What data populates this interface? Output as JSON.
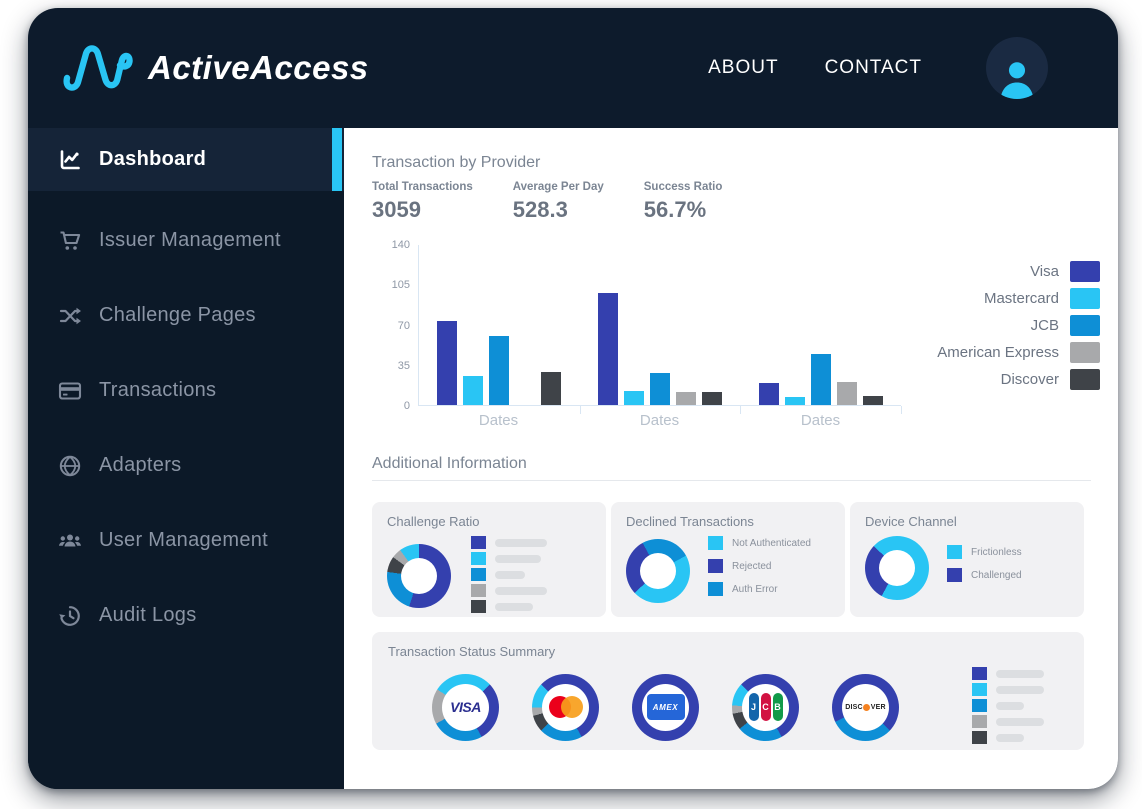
{
  "brand": {
    "name": "ActiveAccess"
  },
  "header": {
    "nav": [
      {
        "id": "about",
        "label": "ABOUT"
      },
      {
        "id": "contact",
        "label": "CONTACT"
      }
    ]
  },
  "sidebar": {
    "accent_color": "#29C5F4",
    "items": [
      {
        "id": "dashboard",
        "label": "Dashboard",
        "icon": "line-chart-icon",
        "active": true
      },
      {
        "id": "issuer-management",
        "label": "Issuer Management",
        "icon": "shopping-cart-icon",
        "active": false
      },
      {
        "id": "challenge-pages",
        "label": "Challenge Pages",
        "icon": "shuffle-icon",
        "active": false
      },
      {
        "id": "transactions",
        "label": "Transactions",
        "icon": "credit-card-icon",
        "active": false
      },
      {
        "id": "adapters",
        "label": "Adapters",
        "icon": "globe-icon",
        "active": false
      },
      {
        "id": "user-management",
        "label": "User Management",
        "icon": "users-icon",
        "active": false
      },
      {
        "id": "audit-logs",
        "label": "Audit Logs",
        "icon": "history-icon",
        "active": false
      }
    ]
  },
  "main": {
    "section_title": "Transaction by Provider",
    "stats": [
      {
        "label": "Total Transactions",
        "value": "3059"
      },
      {
        "label": "Average Per Day",
        "value": "528.3"
      },
      {
        "label": "Success Ratio",
        "value": "56.7%"
      }
    ],
    "additional_title": "Additional Information",
    "cards": {
      "challenge": {
        "title": "Challenge Ratio",
        "skeleton": [
          [
            "indigo",
            52
          ],
          [
            "cyan",
            46
          ],
          [
            "blue",
            30
          ],
          [
            "gray",
            52
          ],
          [
            "dark",
            38
          ]
        ]
      },
      "declined": {
        "title": "Declined Transactions",
        "legend": [
          [
            "cyan",
            "Not Authenticated"
          ],
          [
            "indigo",
            "Rejected"
          ],
          [
            "blue",
            "Auth Error"
          ]
        ]
      },
      "device": {
        "title": "Device Channel",
        "legend": [
          [
            "cyan",
            "Frictionless"
          ],
          [
            "indigo",
            "Challenged"
          ]
        ]
      }
    },
    "summary": {
      "title": "Transaction Status Summary",
      "logos": {
        "visa": "VISA",
        "mastercard": "",
        "amex": "AMEX",
        "jcb": "JCB",
        "discover": "DISCOVER"
      },
      "donuts": [
        {
          "chart": "status-visa",
          "logo": "visa"
        },
        {
          "chart": "status-mastercard",
          "logo": "mastercard"
        },
        {
          "chart": "status-amex",
          "logo": "amex"
        },
        {
          "chart": "status-jcb",
          "logo": "jcb"
        },
        {
          "chart": "status-discover",
          "logo": "discover"
        }
      ],
      "skeleton": [
        [
          "indigo",
          48
        ],
        [
          "cyan",
          48
        ],
        [
          "blue",
          28
        ],
        [
          "gray",
          48
        ],
        [
          "dark",
          28
        ]
      ]
    }
  },
  "palette": {
    "indigo": "#3440AE",
    "cyan": "#29C5F4",
    "blue": "#0E8FD6",
    "gray": "#A8A9AB",
    "dark": "#3F4348",
    "navy": "#0D1B2C",
    "sidebar_navy": "#0C1928",
    "active_navy": "#152438"
  },
  "chart_data": [
    {
      "id": "transactions-by-provider",
      "type": "bar",
      "title": "Transaction by Provider",
      "categories": [
        "Dates",
        "Dates",
        "Dates"
      ],
      "series": [
        {
          "name": "Visa",
          "color": "indigo",
          "values": [
            73,
            97,
            19
          ]
        },
        {
          "name": "Mastercard",
          "color": "cyan",
          "values": [
            25,
            12,
            7
          ]
        },
        {
          "name": "JCB",
          "color": "blue",
          "values": [
            60,
            28,
            44
          ]
        },
        {
          "name": "American Express",
          "color": "gray",
          "values": [
            0,
            11,
            20
          ]
        },
        {
          "name": "Discover",
          "color": "dark",
          "values": [
            29,
            11,
            8
          ]
        }
      ],
      "xlabel": "Dates",
      "ylabel": "",
      "ylim": [
        0,
        140
      ],
      "yticks": [
        140,
        105,
        70,
        35,
        0
      ],
      "legend_position": "right",
      "grid": false
    },
    {
      "id": "challenge-ratio",
      "type": "donut",
      "title": "Challenge Ratio",
      "segments": [
        [
          "indigo",
          55
        ],
        [
          "blue",
          22
        ],
        [
          "dark",
          8
        ],
        [
          "gray",
          5
        ],
        [
          "cyan",
          10
        ]
      ]
    },
    {
      "id": "declined-transactions",
      "type": "donut",
      "title": "Declined Transactions",
      "segments": [
        [
          "blue",
          17
        ],
        [
          "cyan",
          46
        ],
        [
          "indigo",
          29
        ],
        [
          "blue",
          8
        ]
      ]
    },
    {
      "id": "device-channel",
      "type": "donut",
      "title": "Device Channel",
      "segments": [
        [
          "cyan",
          58
        ],
        [
          "indigo",
          29
        ],
        [
          "cyan",
          13
        ]
      ]
    },
    {
      "id": "status-visa",
      "type": "donut",
      "title": "Visa status",
      "segments": [
        [
          "cyan",
          13
        ],
        [
          "indigo",
          29
        ],
        [
          "blue",
          25
        ],
        [
          "gray",
          17
        ],
        [
          "cyan",
          16
        ]
      ]
    },
    {
      "id": "status-mastercard",
      "type": "donut",
      "title": "Mastercard status",
      "segments": [
        [
          "indigo",
          42
        ],
        [
          "blue",
          21
        ],
        [
          "dark",
          8
        ],
        [
          "gray",
          4
        ],
        [
          "cyan",
          12
        ],
        [
          "indigo",
          13
        ]
      ]
    },
    {
      "id": "status-amex",
      "type": "donut",
      "title": "American Express status",
      "segments": [
        [
          "indigo",
          100
        ]
      ]
    },
    {
      "id": "status-jcb",
      "type": "donut",
      "title": "JCB status",
      "segments": [
        [
          "indigo",
          42
        ],
        [
          "blue",
          22
        ],
        [
          "dark",
          8
        ],
        [
          "gray",
          4
        ],
        [
          "cyan",
          11
        ],
        [
          "indigo",
          13
        ]
      ]
    },
    {
      "id": "status-discover",
      "type": "donut",
      "title": "Discover status",
      "segments": [
        [
          "indigo",
          37
        ],
        [
          "blue",
          31
        ],
        [
          "indigo",
          32
        ]
      ]
    }
  ]
}
